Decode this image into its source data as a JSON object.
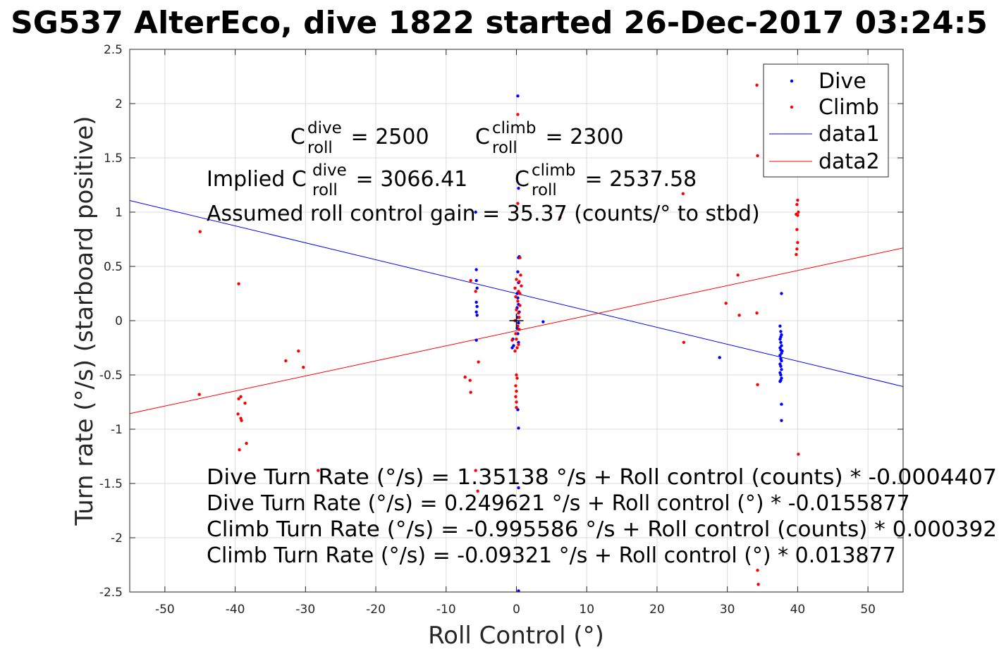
{
  "chart_data": {
    "type": "scatter",
    "title": "SG537 AlterEco, dive 1822 started 26-Dec-2017 03:24:5",
    "xlabel": "Roll Control (°)",
    "ylabel": "Turn rate (°/s) (starboard positive)",
    "xlim": [
      -55,
      55
    ],
    "ylim": [
      -2.5,
      2.5
    ],
    "xticks": [
      -50,
      -40,
      -30,
      -20,
      -10,
      0,
      10,
      20,
      30,
      40,
      50
    ],
    "yticks": [
      -2.5,
      -2,
      -1.5,
      -1,
      -0.5,
      0,
      0.5,
      1,
      1.5,
      2,
      2.5
    ],
    "xtick_labels": [
      "-50",
      "-40",
      "-30",
      "-20",
      "-10",
      "0",
      "10",
      "20",
      "30",
      "40",
      "50"
    ],
    "ytick_labels": [
      "-2.5",
      "-2",
      "-1.5",
      "-1",
      "-0.5",
      "0",
      "0.5",
      "1",
      "1.5",
      "2",
      "2.5"
    ],
    "grid": true,
    "legend_position": "top-right",
    "series": [
      {
        "name": "Dive",
        "kind": "points",
        "color": "#0000ff",
        "points": [
          [
            0.2,
            2.07
          ],
          [
            0.3,
            1.22
          ],
          [
            0.4,
            0.59
          ],
          [
            0.3,
            0.58
          ],
          [
            0.2,
            0.45
          ],
          [
            0.3,
            0.35
          ],
          [
            0.1,
            0.25
          ],
          [
            0.2,
            0.21
          ],
          [
            0.3,
            0.15
          ],
          [
            0.1,
            0.12
          ],
          [
            0.4,
            0.08
          ],
          [
            0.2,
            0.03
          ],
          [
            0.3,
            -0.02
          ],
          [
            0.1,
            -0.07
          ],
          [
            0.2,
            -0.12
          ],
          [
            0.3,
            -0.2
          ],
          [
            -0.6,
            -0.25
          ],
          [
            -0.5,
            -0.17
          ],
          [
            -0.4,
            -0.23
          ],
          [
            0.2,
            -0.82
          ],
          [
            0.3,
            -0.99
          ],
          [
            0.3,
            -1.54
          ],
          [
            0.3,
            -2.49
          ],
          [
            3.8,
            -0.01
          ],
          [
            -5.7,
            0.47
          ],
          [
            -5.7,
            0.37
          ],
          [
            -5.6,
            0.3
          ],
          [
            -5.7,
            0.17
          ],
          [
            -5.6,
            0.13
          ],
          [
            -5.7,
            0.08
          ],
          [
            -5.6,
            0.05
          ],
          [
            -5.7,
            -0.18
          ],
          [
            -5.8,
            1.0
          ],
          [
            28.9,
            -0.34
          ],
          [
            37.7,
            0.25
          ],
          [
            37.5,
            -0.05
          ],
          [
            37.6,
            -0.1
          ],
          [
            37.7,
            -0.13
          ],
          [
            37.5,
            -0.17
          ],
          [
            37.6,
            -0.2
          ],
          [
            37.7,
            -0.23
          ],
          [
            37.5,
            -0.25
          ],
          [
            37.6,
            -0.27
          ],
          [
            37.7,
            -0.3
          ],
          [
            37.5,
            -0.32
          ],
          [
            37.6,
            -0.35
          ],
          [
            37.7,
            -0.37
          ],
          [
            37.5,
            -0.4
          ],
          [
            37.6,
            -0.42
          ],
          [
            37.7,
            -0.45
          ],
          [
            37.5,
            -0.48
          ],
          [
            37.6,
            -0.5
          ],
          [
            37.7,
            -0.53
          ],
          [
            37.5,
            -0.56
          ],
          [
            37.6,
            -0.55
          ],
          [
            37.7,
            -0.77
          ],
          [
            37.7,
            -0.92
          ],
          [
            37.6,
            -0.15
          ],
          [
            37.8,
            -0.28
          ]
        ]
      },
      {
        "name": "Climb",
        "kind": "points",
        "color": "#ff0000",
        "points": [
          [
            0.2,
            1.9
          ],
          [
            0.2,
            1.08
          ],
          [
            0.5,
            0.58
          ],
          [
            0.0,
            0.38
          ],
          [
            0.6,
            0.42
          ],
          [
            0.4,
            0.36
          ],
          [
            0.7,
            0.32
          ],
          [
            -0.2,
            0.3
          ],
          [
            0.3,
            0.27
          ],
          [
            0.5,
            0.25
          ],
          [
            -0.1,
            0.22
          ],
          [
            0.2,
            0.18
          ],
          [
            0.5,
            0.14
          ],
          [
            0.0,
            0.1
          ],
          [
            0.3,
            0.07
          ],
          [
            0.4,
            0.03
          ],
          [
            -0.2,
            0.0
          ],
          [
            0.2,
            -0.05
          ],
          [
            0.4,
            -0.08
          ],
          [
            -0.1,
            -0.12
          ],
          [
            0.0,
            -0.17
          ],
          [
            0.3,
            -0.22
          ],
          [
            0.1,
            -0.25
          ],
          [
            -0.2,
            -0.28
          ],
          [
            0.0,
            -0.5
          ],
          [
            0.1,
            -0.53
          ],
          [
            -0.1,
            -0.6
          ],
          [
            0.0,
            -0.65
          ],
          [
            -0.1,
            -0.7
          ],
          [
            0.0,
            -0.75
          ],
          [
            0.0,
            -0.8
          ],
          [
            -0.6,
            -0.18
          ],
          [
            6.2,
            0.95
          ],
          [
            -6.5,
            0.37
          ],
          [
            -5.8,
            0.27
          ],
          [
            -5.4,
            -0.38
          ],
          [
            -7.3,
            -0.52
          ],
          [
            -6.6,
            -0.55
          ],
          [
            -6.5,
            -0.66
          ],
          [
            -5.8,
            -1.38
          ],
          [
            -5.5,
            -1.57
          ],
          [
            -45.0,
            0.82
          ],
          [
            -45.1,
            -0.68
          ],
          [
            -39.5,
            0.34
          ],
          [
            -32.8,
            -0.37
          ],
          [
            -31.0,
            -0.28
          ],
          [
            -30.3,
            -0.43
          ],
          [
            -39.2,
            -0.7
          ],
          [
            -39.5,
            -0.72
          ],
          [
            -38.6,
            -0.76
          ],
          [
            -39.6,
            -0.86
          ],
          [
            -39.2,
            -0.9
          ],
          [
            -39.1,
            -0.92
          ],
          [
            -38.4,
            -1.13
          ],
          [
            -39.4,
            -1.19
          ],
          [
            -28.2,
            -1.38
          ],
          [
            23.7,
            1.17
          ],
          [
            23.8,
            -0.2
          ],
          [
            29.8,
            0.16
          ],
          [
            31.5,
            0.42
          ],
          [
            31.7,
            0.05
          ],
          [
            34.2,
            0.07
          ],
          [
            34.3,
            -0.59
          ],
          [
            34.2,
            2.17
          ],
          [
            34.3,
            1.52
          ],
          [
            34.3,
            -2.3
          ],
          [
            34.4,
            -2.43
          ],
          [
            40.0,
            1.11
          ],
          [
            39.9,
            1.07
          ],
          [
            40.1,
            1.0
          ],
          [
            39.8,
            0.98
          ],
          [
            40.0,
            0.97
          ],
          [
            39.9,
            0.84
          ],
          [
            40.0,
            0.72
          ],
          [
            39.9,
            0.66
          ],
          [
            39.8,
            0.61
          ],
          [
            40.1,
            -1.23
          ]
        ]
      },
      {
        "name": "data1",
        "kind": "line",
        "color": "#0000ff",
        "x": [
          -55,
          55
        ],
        "y": [
          1.107,
          -0.607
        ]
      },
      {
        "name": "data2",
        "kind": "line",
        "color": "#ff0000",
        "x": [
          -55,
          55
        ],
        "y": [
          -0.856,
          0.67
        ]
      }
    ],
    "marker": {
      "x": 0,
      "y": 0,
      "symbol": "+",
      "color": "#000000"
    },
    "annotations": {
      "c_dive_base": "C",
      "c_dive_sup": "dive",
      "c_dive_sub": "roll",
      "c_dive_val": " = 2500",
      "c_climb_base": "C",
      "c_climb_sup": "climb",
      "c_climb_sub": "roll",
      "c_climb_val": " = 2300",
      "implied_prefix": "Implied C",
      "implied_dive_sup": "dive",
      "implied_dive_sub": "roll",
      "implied_dive_val": " = 3066.41",
      "implied_climb_base": "C",
      "implied_climb_sup": "climb",
      "implied_climb_sub": "roll",
      "implied_climb_val": " = 2537.58",
      "gain": "Assumed roll control gain = 35.37 (counts/° to stbd)",
      "eq1": "Dive Turn Rate (°/s) = 1.35138 °/s + Roll control (counts) * -0.0004407",
      "eq2": "Dive Turn Rate (°/s) = 0.249621 °/s + Roll control (°) * -0.0155877",
      "eq3": "Climb Turn Rate (°/s) = -0.995586 °/s + Roll control (counts) * 0.000392",
      "eq4": "Climb Turn Rate (°/s) = -0.09321 °/s + Roll control (°) * 0.013877"
    }
  }
}
